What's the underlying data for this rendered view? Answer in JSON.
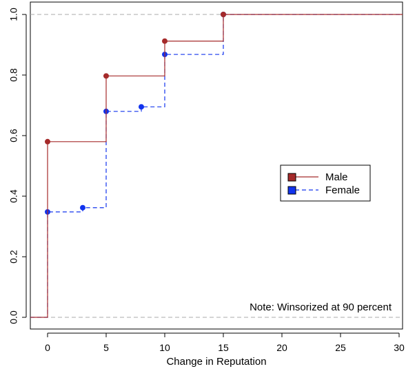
{
  "chart_data": {
    "type": "line",
    "title": "",
    "xlabel": "Change in Reputation",
    "ylabel": "",
    "xlim": [
      -1.5,
      30
    ],
    "ylim": [
      -0.02,
      1.02
    ],
    "xticks": [
      0,
      5,
      10,
      15,
      20,
      25,
      30
    ],
    "yticks": [
      0.0,
      0.2,
      0.4,
      0.6,
      0.8,
      1.0
    ],
    "xtick_labels": [
      "0",
      "5",
      "10",
      "15",
      "20",
      "25",
      "30"
    ],
    "ytick_labels": [
      "0.0",
      "0.2",
      "0.4",
      "0.6",
      "0.8",
      "1.0"
    ],
    "reference_lines_y": [
      0.0,
      1.0
    ],
    "grid": false,
    "legend_position": "right",
    "annotation": "Note: Winsorized at 90 percent",
    "series": [
      {
        "name": "Male",
        "color": "#a52a2a",
        "line_style": "solid",
        "step": true,
        "points": [
          {
            "x": 0,
            "y": 0.58
          },
          {
            "x": 5,
            "y": 0.797
          },
          {
            "x": 10,
            "y": 0.912
          },
          {
            "x": 15,
            "y": 1.0
          }
        ]
      },
      {
        "name": "Female",
        "color": "#1133ee",
        "line_style": "dashed",
        "step": true,
        "points": [
          {
            "x": 0,
            "y": 0.348
          },
          {
            "x": 3,
            "y": 0.362
          },
          {
            "x": 5,
            "y": 0.68
          },
          {
            "x": 8,
            "y": 0.695
          },
          {
            "x": 10,
            "y": 0.868
          },
          {
            "x": 15,
            "y": 1.0
          }
        ]
      }
    ]
  }
}
